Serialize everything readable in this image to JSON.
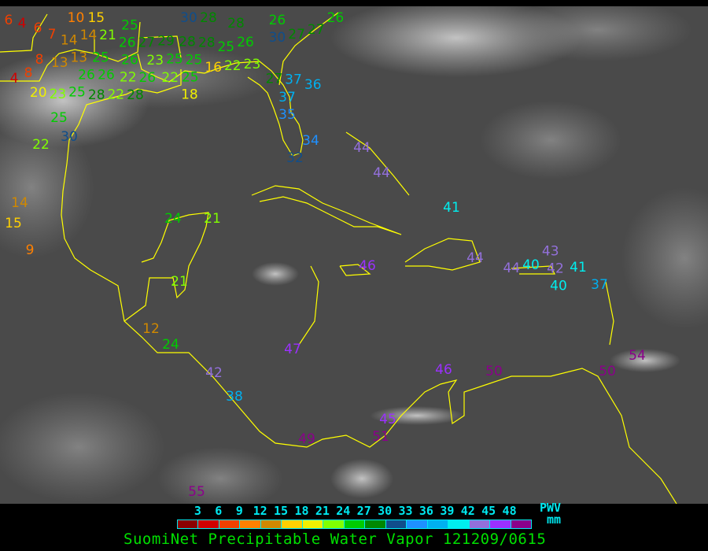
{
  "title": "SuomiNet Precipitable Water Vapor 121209/0615",
  "legend": {
    "ticks": [
      "3",
      "6",
      "9",
      "12",
      "15",
      "18",
      "21",
      "24",
      "27",
      "30",
      "33",
      "36",
      "39",
      "42",
      "45",
      "48"
    ],
    "unit_top": "PWV",
    "unit_bottom": "mm",
    "colors": [
      "#8b0000",
      "#d00000",
      "#f04000",
      "#ff8000",
      "#d08800",
      "#ffd000",
      "#f0f000",
      "#80ff00",
      "#00cc00",
      "#008800",
      "#104e8b",
      "#1e90ff",
      "#00b0f0",
      "#00eeee",
      "#9370db",
      "#9b30ff",
      "#8b008b"
    ]
  },
  "map": {
    "coastline_color": "#ffff00",
    "station_values": [
      6,
      4,
      6,
      7,
      10,
      15,
      14,
      8,
      8,
      4,
      13,
      13,
      14,
      21,
      25,
      26,
      27,
      29,
      28,
      28,
      25,
      26,
      25,
      26,
      23,
      25,
      25,
      26,
      26,
      22,
      26,
      22,
      25,
      18,
      16,
      22,
      23,
      20,
      23,
      25,
      28,
      22,
      28,
      30,
      28,
      28,
      26,
      30,
      27,
      27,
      26,
      27,
      37,
      36,
      37,
      35,
      34,
      32,
      25,
      30,
      22,
      14,
      15,
      9,
      24,
      21,
      21,
      12,
      24,
      42,
      38,
      47,
      49,
      45,
      51,
      46,
      50,
      50,
      54,
      55,
      44,
      44,
      41,
      46,
      44,
      44,
      40,
      43,
      40,
      42,
      41,
      37
    ]
  }
}
